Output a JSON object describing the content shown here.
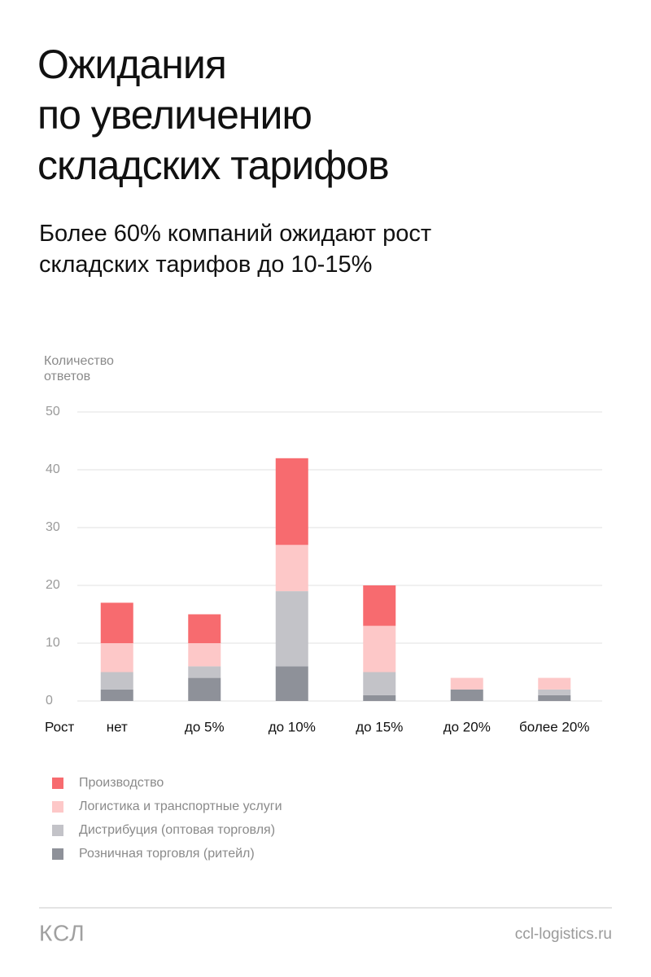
{
  "chart_data": {
    "type": "stacked_bar",
    "title": "Ожидания\nпо увеличению\nскладских тарифов",
    "subtitle": "Более 60% компаний ожидают рост\nскладских тарифов до 10-15%",
    "y_label": "Количество\nответов",
    "x_label": "Рост",
    "categories": [
      "нет",
      "до 5%",
      "до 10%",
      "до 15%",
      "до 20%",
      "более 20%"
    ],
    "series": [
      {
        "name": "Производство",
        "color": "#f76b6f",
        "values": [
          7,
          5,
          15,
          7,
          0,
          0
        ]
      },
      {
        "name": "Логистика и транспортные услуги",
        "color": "#fdc8c8",
        "values": [
          5,
          4,
          8,
          8,
          2,
          2
        ]
      },
      {
        "name": "Дистрибуция (оптовая торговля)",
        "color": "#c3c3c8",
        "values": [
          3,
          2,
          13,
          4,
          0,
          1
        ]
      },
      {
        "name": "Розничная торговля (ритейл)",
        "color": "#8e9199",
        "values": [
          2,
          4,
          6,
          1,
          2,
          1
        ]
      }
    ],
    "ylim": [
      0,
      50
    ],
    "yticks": [
      0,
      10,
      20,
      30,
      40,
      50
    ],
    "grid": true
  },
  "footer": {
    "logo": "КСЛ",
    "site": "ccl-logistics.ru"
  }
}
